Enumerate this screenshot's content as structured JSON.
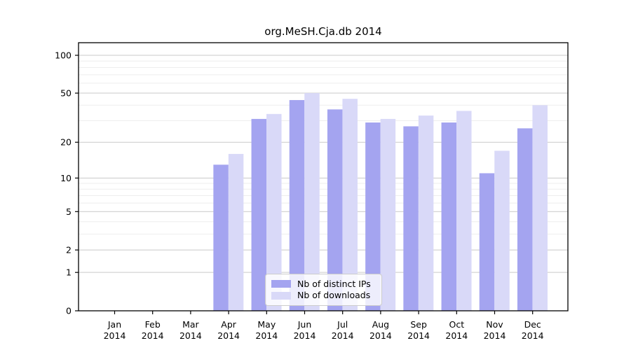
{
  "chart_data": {
    "type": "bar",
    "title": "org.MeSH.Cja.db 2014",
    "categories": [
      "Jan",
      "Feb",
      "Mar",
      "Apr",
      "May",
      "Jun",
      "Jul",
      "Aug",
      "Sep",
      "Oct",
      "Nov",
      "Dec"
    ],
    "x_tick_second_line": "2014",
    "series": [
      {
        "name": "Nb of distinct IPs",
        "color": "#a4a4f0",
        "values": [
          0,
          0,
          0,
          13,
          31,
          44,
          37,
          29,
          27,
          29,
          11,
          26
        ]
      },
      {
        "name": "Nb of downloads",
        "color": "#d9d9f8",
        "values": [
          0,
          0,
          0,
          16,
          34,
          50,
          45,
          31,
          33,
          36,
          17,
          40
        ]
      }
    ],
    "y_axis": {
      "scale": "log1p",
      "tick_values": [
        0,
        1,
        2,
        5,
        10,
        20,
        50,
        100
      ],
      "minor_gridline_values": [
        3,
        4,
        6,
        7,
        8,
        9,
        30,
        40,
        60,
        70,
        80,
        90
      ],
      "ylim": [
        0,
        126
      ]
    },
    "grid": "horizontal",
    "legend_position": "bottom-center"
  },
  "colors": {
    "bar_dark": "#a4a4f0",
    "bar_light": "#d9d9f8",
    "major_grid": "#c9c9c9",
    "minor_grid": "#ededed",
    "axis": "#000000",
    "text": "#000000",
    "background": "#ffffff"
  }
}
